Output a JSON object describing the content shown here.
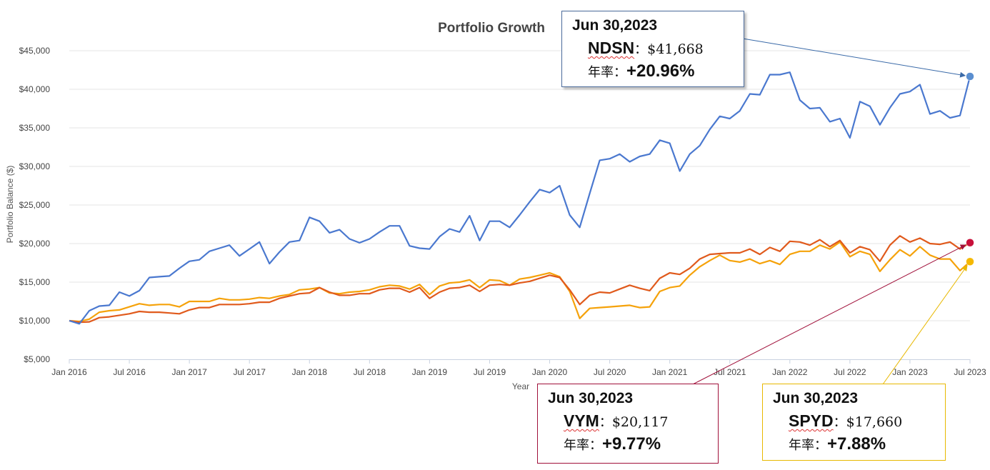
{
  "chart_data": {
    "type": "line",
    "title": "Portfolio Growth",
    "xlabel": "Year",
    "ylabel": "Portfolio Balance ($)",
    "ylim": [
      5000,
      45000
    ],
    "yticks": [
      5000,
      10000,
      15000,
      20000,
      25000,
      30000,
      35000,
      40000,
      45000
    ],
    "ytick_labels": [
      "$5,000",
      "$10,000",
      "$15,000",
      "$20,000",
      "$25,000",
      "$30,000",
      "$35,000",
      "$40,000",
      "$45,000"
    ],
    "xlim": [
      0,
      90
    ],
    "xticks": [
      0,
      6,
      12,
      18,
      24,
      30,
      36,
      42,
      48,
      54,
      60,
      66,
      72,
      78,
      84,
      90
    ],
    "xtick_labels": [
      "Jan 2016",
      "Jul 2016",
      "Jan 2017",
      "Jul 2017",
      "Jan 2018",
      "Jul 2018",
      "Jan 2019",
      "Jul 2019",
      "Jan 2020",
      "Jul 2020",
      "Jan 2021",
      "Jul 2021",
      "Jan 2022",
      "Jul 2022",
      "Jan 2023",
      "Jul 2023"
    ],
    "x_unit": "months since Jan 2016",
    "grid": true,
    "series": [
      {
        "name": "NDSN",
        "color": "#4a78cf",
        "values": [
          10000,
          9600,
          11300,
          11900,
          12000,
          13700,
          13200,
          13900,
          15600,
          15700,
          15800,
          16800,
          17700,
          17900,
          19000,
          19400,
          19800,
          18400,
          19300,
          20200,
          17400,
          18900,
          20200,
          20400,
          23400,
          22900,
          21400,
          21800,
          20600,
          20100,
          20600,
          21500,
          22300,
          22300,
          19700,
          19400,
          19300,
          20900,
          21900,
          21500,
          23600,
          20400,
          22900,
          22900,
          22100,
          23700,
          25400,
          27000,
          26600,
          27500,
          23700,
          22100,
          26500,
          30800,
          31000,
          31600,
          30600,
          31300,
          31600,
          33400,
          33000,
          29400,
          31600,
          32700,
          34800,
          36500,
          36200,
          37200,
          39400,
          39300,
          41900,
          41900,
          42200,
          38600,
          37500,
          37600,
          35800,
          36200,
          33700,
          38400,
          37800,
          35400,
          37600,
          39400,
          39700,
          40600,
          36800,
          37200,
          36300,
          36600,
          41668
        ]
      },
      {
        "name": "VYM",
        "color": "#e05a1c",
        "values": [
          10000,
          9800,
          9850,
          10400,
          10500,
          10700,
          10900,
          11200,
          11100,
          11100,
          11000,
          10900,
          11400,
          11700,
          11700,
          12100,
          12100,
          12100,
          12200,
          12400,
          12400,
          12900,
          13200,
          13500,
          13600,
          14300,
          13700,
          13300,
          13300,
          13500,
          13500,
          14000,
          14200,
          14200,
          13700,
          14300,
          12900,
          13700,
          14200,
          14300,
          14600,
          13800,
          14600,
          14700,
          14600,
          14900,
          15100,
          15500,
          15900,
          15600,
          14000,
          12100,
          13300,
          13700,
          13600,
          14100,
          14600,
          14200,
          13900,
          15500,
          16200,
          16000,
          16800,
          18000,
          18600,
          18700,
          18800,
          18800,
          19300,
          18600,
          19500,
          19000,
          20300,
          20200,
          19800,
          20500,
          19600,
          20400,
          18800,
          19600,
          19200,
          17700,
          19800,
          21000,
          20200,
          20700,
          20000,
          19900,
          20200,
          19300,
          20117
        ]
      },
      {
        "name": "SPYD",
        "color": "#f5a20a",
        "values": [
          10000,
          9900,
          10200,
          11100,
          11300,
          11400,
          11800,
          12200,
          12000,
          12100,
          12100,
          11800,
          12500,
          12500,
          12500,
          12900,
          12700,
          12700,
          12800,
          13000,
          12900,
          13200,
          13400,
          14000,
          14100,
          14300,
          13600,
          13500,
          13700,
          13800,
          14000,
          14400,
          14600,
          14500,
          14100,
          14700,
          13400,
          14500,
          14900,
          15000,
          15300,
          14300,
          15300,
          15200,
          14600,
          15400,
          15600,
          15900,
          16200,
          15700,
          13800,
          10300,
          11600,
          11700,
          11800,
          11900,
          12000,
          11700,
          11800,
          13800,
          14300,
          14500,
          15900,
          17000,
          17800,
          18500,
          17800,
          17600,
          18000,
          17400,
          17800,
          17300,
          18600,
          19000,
          19000,
          19800,
          19300,
          20200,
          18300,
          19000,
          18600,
          16400,
          17900,
          19200,
          18400,
          19600,
          18500,
          18000,
          18000,
          16500,
          17660
        ]
      }
    ],
    "endpoint_markers": [
      {
        "series": "NDSN",
        "color": "#5b8fd0"
      },
      {
        "series": "VYM",
        "color": "#c8103a"
      },
      {
        "series": "SPYD",
        "color": "#f5b800"
      }
    ]
  },
  "callouts": {
    "ndsn": {
      "date": "Jun 30,2023",
      "ticker": "NDSN",
      "sep": "：",
      "value": "$41,668",
      "rate_label": "年率：",
      "rate": "+20.96%",
      "border": "#4a6a9a",
      "arrow": "#3a6aa8"
    },
    "vym": {
      "date": "Jun 30,2023",
      "ticker": "VYM",
      "sep": "：",
      "value": "$20,117",
      "rate_label": "年率：",
      "rate": "+9.77%",
      "border": "#a0103a",
      "arrow": "#a0103a"
    },
    "spyd": {
      "date": "Jun 30,2023",
      "ticker": "SPYD",
      "sep": "：",
      "value": "$17,660",
      "rate_label": "年率：",
      "rate": "+7.88%",
      "border": "#e8b800",
      "arrow": "#e8b800"
    }
  }
}
